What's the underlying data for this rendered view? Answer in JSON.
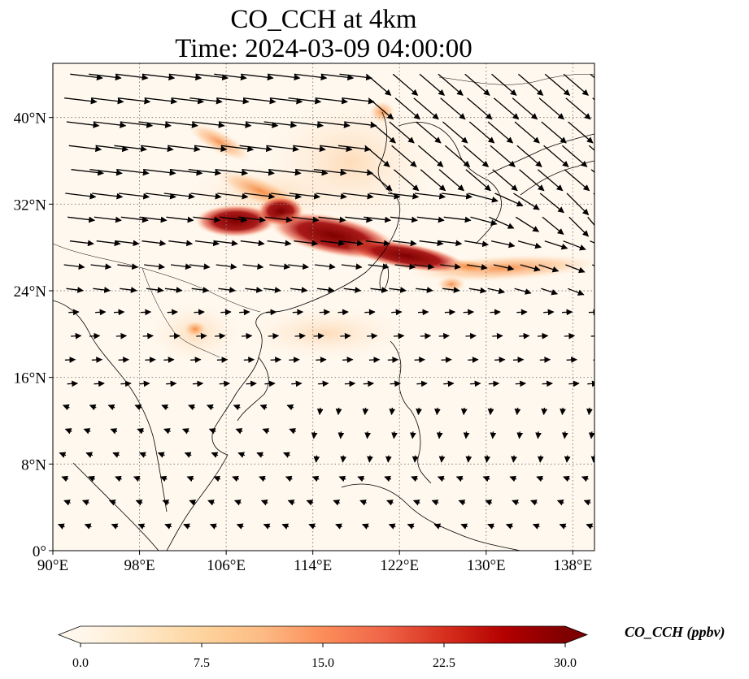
{
  "title": {
    "line1": "CO_CCH at 4km",
    "line2": "Time: 2024-03-09 04:00:00"
  },
  "map": {
    "lon_range": [
      90,
      140
    ],
    "lat_range": [
      0,
      45
    ],
    "lon_ticks": [
      "90°E",
      "98°E",
      "106°E",
      "114°E",
      "122°E",
      "130°E",
      "138°E"
    ],
    "lat_ticks": [
      "0°",
      "8°N",
      "16°N",
      "24°N",
      "32°N",
      "40°N"
    ],
    "gridlines": true
  },
  "colorbar": {
    "label": "CO_CCH (ppbv)",
    "ticks": [
      "0.0",
      "7.5",
      "15.0",
      "22.5",
      "30.0"
    ],
    "range": [
      0,
      30
    ],
    "extend": "both",
    "colors": [
      "#fff7ec",
      "#fee8c8",
      "#fdd49e",
      "#fdbb84",
      "#fc8d59",
      "#ef6548",
      "#d7301f",
      "#b30000",
      "#7f0000"
    ]
  }
}
